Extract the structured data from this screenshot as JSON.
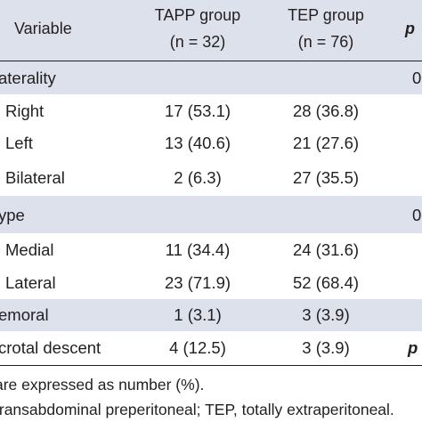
{
  "header": {
    "variable": "Variable",
    "tapp_line1": "TAPP group",
    "tapp_line2": "(n = 32)",
    "tep_line1": "TEP group",
    "tep_line2": "(n = 76)",
    "p": "p"
  },
  "rows": [
    {
      "label": "aterality",
      "tapp": "",
      "tep": "",
      "p": "0"
    },
    {
      "label": "Right",
      "tapp": "17 (53.1)",
      "tep": "28 (36.8)",
      "p": ""
    },
    {
      "label": "Left",
      "tapp": "13 (40.6)",
      "tep": "21 (27.6)",
      "p": ""
    },
    {
      "label": "Bilateral",
      "tapp": "2 (6.3)",
      "tep": "27 (35.5)",
      "p": ""
    },
    {
      "label": "ype",
      "tapp": "",
      "tep": "",
      "p": "0"
    },
    {
      "label": "Medial",
      "tapp": "11 (34.4)",
      "tep": "24 (31.6)",
      "p": ""
    },
    {
      "label": "Lateral",
      "tapp": "23 (71.9)",
      "tep": "52 (68.4)",
      "p": ""
    },
    {
      "label": "emoral",
      "tapp": "1 (3.1)",
      "tep": "3 (3.9)",
      "p": ""
    },
    {
      "label": "crotal descent",
      "tapp": "4 (12.5)",
      "tep": "3 (3.9)",
      "p": "p"
    }
  ],
  "footnotes": [
    "are expressed as number (%).",
    "transabdominal preperitoneal; TEP, totally extraperitoneal."
  ],
  "colors": {
    "band": "#dde1ec",
    "text": "#231f20"
  }
}
